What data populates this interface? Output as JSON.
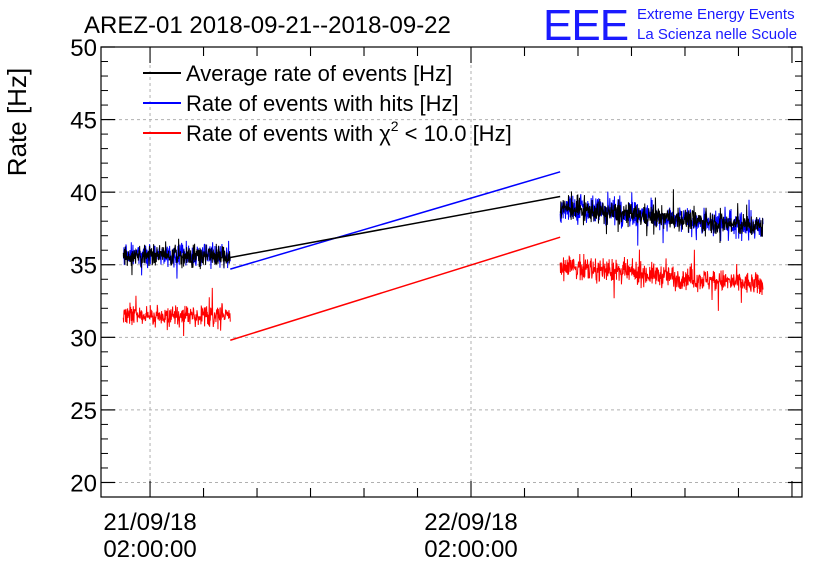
{
  "header": {
    "title": "AREZ-01 2018-09-21--2018-09-22",
    "logo_text": "EEE",
    "logo_line1": "Extreme Energy Events",
    "logo_line2": "La Scienza nelle Scuole"
  },
  "colors": {
    "black": "#000000",
    "blue": "#0000ff",
    "red": "#ff0000",
    "grid": "#b0b0b0"
  },
  "chart_data": {
    "type": "line",
    "title": "AREZ-01 2018-09-21--2018-09-22",
    "ylabel": "Rate [Hz]",
    "xlabel": "",
    "ylim": [
      19,
      50
    ],
    "yticks": [
      20,
      25,
      30,
      35,
      40,
      45,
      50
    ],
    "xlim": [
      "2018-09-20 22:20",
      "2018-09-23 02:45"
    ],
    "xticks": [
      {
        "x": "2018-09-21 02:00",
        "label_line1": "21/09/18",
        "label_line2": "02:00:00"
      },
      {
        "x": "2018-09-22 02:00",
        "label_line1": "22/09/18",
        "label_line2": "02:00:00"
      }
    ],
    "grid": true,
    "legend_position": "top-left",
    "series": [
      {
        "name": "Average rate of events [Hz]",
        "legend_prefix": "Average rate of events [Hz]",
        "legend_superscript": "",
        "legend_suffix": "",
        "color": "#000000",
        "segments": [
          {
            "x_start": "2018-09-21 00:00",
            "x_end": "2018-09-21 08:00",
            "y_mean": 35.6,
            "noise": 0.9
          },
          {
            "x_start": "2018-09-21 08:00",
            "x_end": "2018-09-22 08:40",
            "y_start": 35.5,
            "y_end": 39.7,
            "noise": 0
          },
          {
            "x_start": "2018-09-22 08:40",
            "x_end": "2018-09-22 23:50",
            "y_start": 38.9,
            "y_end": 37.6,
            "noise": 1.0
          }
        ]
      },
      {
        "name": "Rate of events with hits [Hz]",
        "legend_prefix": "Rate of events with hits [Hz]",
        "legend_superscript": "",
        "legend_suffix": "",
        "color": "#0000ff",
        "segments": [
          {
            "x_start": "2018-09-21 00:00",
            "x_end": "2018-09-21 08:00",
            "y_mean": 35.7,
            "noise": 1.0
          },
          {
            "x_start": "2018-09-21 08:00",
            "x_end": "2018-09-22 08:40",
            "y_start": 34.7,
            "y_end": 41.4,
            "noise": 0
          },
          {
            "x_start": "2018-09-22 08:40",
            "x_end": "2018-09-22 23:50",
            "y_start": 38.9,
            "y_end": 37.6,
            "noise": 1.1
          }
        ]
      },
      {
        "name": "Rate of events with χ2 < 10.0 [Hz]",
        "legend_prefix": "Rate of events with χ",
        "legend_superscript": "2",
        "legend_suffix": " < 10.0 [Hz]",
        "color": "#ff0000",
        "segments": [
          {
            "x_start": "2018-09-21 00:00",
            "x_end": "2018-09-21 08:00",
            "y_mean": 31.5,
            "noise": 0.9
          },
          {
            "x_start": "2018-09-21 08:00",
            "x_end": "2018-09-22 08:40",
            "y_start": 29.8,
            "y_end": 36.9,
            "noise": 0
          },
          {
            "x_start": "2018-09-22 08:40",
            "x_end": "2018-09-22 23:50",
            "y_start": 34.9,
            "y_end": 33.6,
            "noise": 1.0
          }
        ]
      }
    ]
  }
}
